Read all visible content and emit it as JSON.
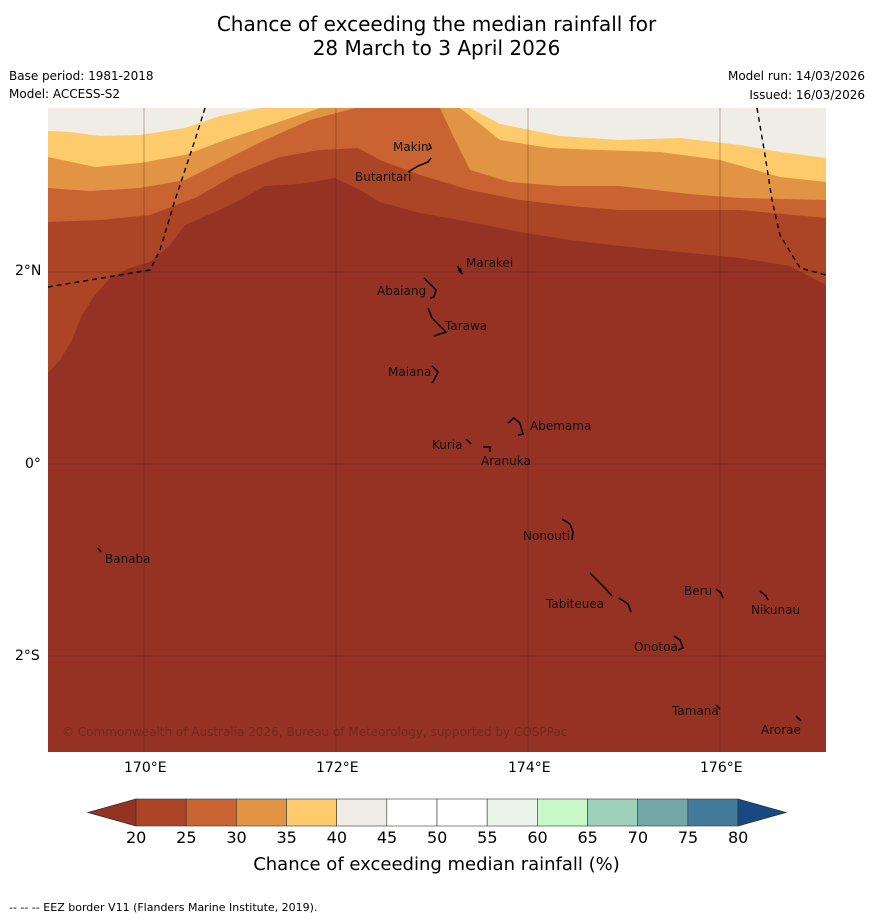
{
  "title_line1": "Chance of exceeding the median rainfall for",
  "title_line2": "28 March to 3 April 2026",
  "base_period": "Base period: 1981-2018",
  "model": "Model: ACCESS-S2",
  "model_run": "Model run: 14/03/2026",
  "issued": "Issued: 16/03/2026",
  "lat_labels": [
    "2°N",
    "0°",
    "2°S"
  ],
  "lon_labels": [
    "170°E",
    "172°E",
    "174°E",
    "176°E"
  ],
  "places": [
    "Makin",
    "Butaritari",
    "Marakei",
    "Abaiang",
    "Tarawa",
    "Maiana",
    "Abemama",
    "Kuria",
    "Aranuka",
    "Nonouti",
    "Banaba",
    "Beru",
    "Nikunau",
    "Tabiteuea",
    "Onotoa",
    "Tamana",
    "Arorae"
  ],
  "copyright": "© Commonwealth of Australia 2026, Bureau of Meteorology, supported by COSPPac",
  "colorbar": {
    "ticks": [
      "20",
      "25",
      "30",
      "35",
      "40",
      "45",
      "50",
      "55",
      "60",
      "65",
      "70",
      "75",
      "80"
    ],
    "colors": [
      "#ac4526",
      "#c96432",
      "#e19444",
      "#fdcb6b",
      "#f0ece6",
      "#ffffff",
      "#ffffff",
      "#ecf3ea",
      "#c8f8c8",
      "#9ed0bc",
      "#72a9a6",
      "#417a9a"
    ],
    "under_color": "#963223",
    "over_color": "#174a82",
    "title": "Chance of exceeding median rainfall (%)"
  },
  "footer": "--  --  -- EEZ border V11 (Flanders Marine Institute, 2019)."
}
